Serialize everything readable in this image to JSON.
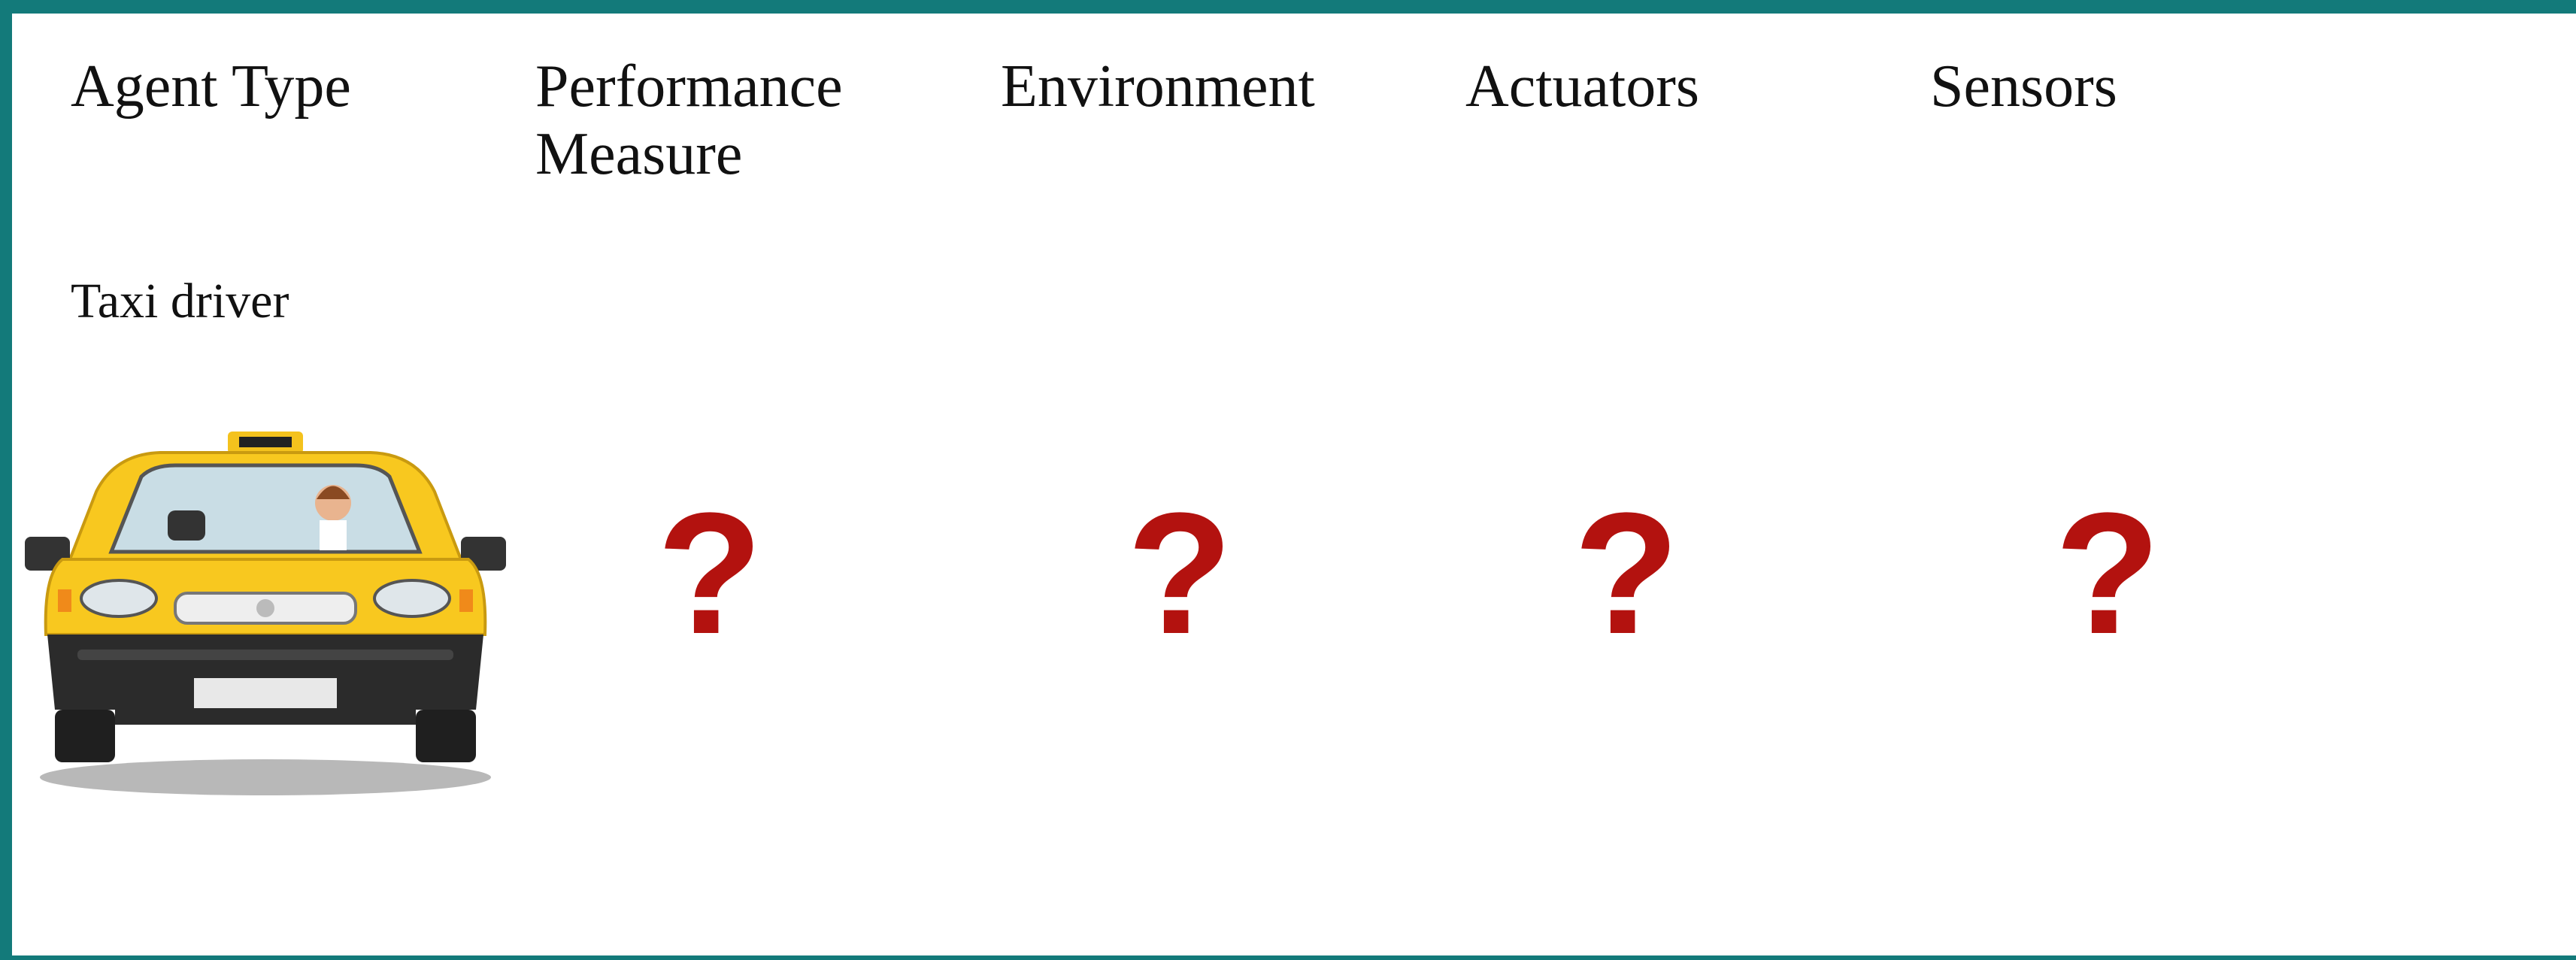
{
  "table": {
    "headers": [
      "Agent Type",
      "Performance Measure",
      "Environment",
      "Actuators",
      "Sensors"
    ],
    "rows": [
      [
        "Taxi driver",
        "?",
        "?",
        "?",
        "?"
      ]
    ]
  }
}
